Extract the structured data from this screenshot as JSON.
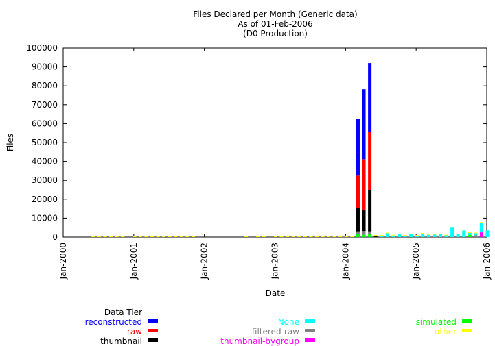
{
  "chart_data": {
    "type": "bar",
    "stacked": true,
    "title": "Files Declared per Month (Generic data)",
    "subtitle_lines": [
      "As of 01-Feb-2006",
      "(D0 Production)"
    ],
    "xlabel": "Date",
    "ylabel": "Files",
    "ylim": [
      0,
      100000
    ],
    "yticks": [
      0,
      10000,
      20000,
      30000,
      40000,
      50000,
      60000,
      70000,
      80000,
      90000,
      100000
    ],
    "xlim": [
      "2000-01",
      "2006-01"
    ],
    "xticks": [
      {
        "date": "2000-01",
        "label": "Jan-2000"
      },
      {
        "date": "2001-01",
        "label": "Jan-2001"
      },
      {
        "date": "2002-01",
        "label": "Jan-2002"
      },
      {
        "date": "2003-01",
        "label": "Jan-2003"
      },
      {
        "date": "2004-01",
        "label": "Jan-2004"
      },
      {
        "date": "2005-01",
        "label": "Jan-2005"
      },
      {
        "date": "2006-01",
        "label": "Jan-2006"
      }
    ],
    "grid": false,
    "legend": {
      "title": "Data Tier",
      "placement": "bottom",
      "entries": [
        {
          "name": "reconstructed",
          "color": "#0000ff"
        },
        {
          "name": "raw",
          "color": "#ff0000"
        },
        {
          "name": "thumbnail",
          "color": "#000000"
        },
        {
          "name": "None",
          "color": "#00ffff"
        },
        {
          "name": "filtered-raw",
          "color": "#808080"
        },
        {
          "name": "thumbnail-bygroup",
          "color": "#ff00ff"
        },
        {
          "name": "simulated",
          "color": "#00ff00"
        },
        {
          "name": "other",
          "color": "#ffff00"
        }
      ]
    },
    "series": [
      {
        "name": "simulated",
        "color": "#00ff00",
        "points": [
          {
            "x": "2004-03",
            "y": 1500
          },
          {
            "x": "2004-04",
            "y": 1200
          },
          {
            "x": "2004-05",
            "y": 1500
          },
          {
            "x": "2005-10",
            "y": 1200
          }
        ]
      },
      {
        "name": "filtered-raw",
        "color": "#808080",
        "points": [
          {
            "x": "2004-03",
            "y": 1500
          },
          {
            "x": "2004-04",
            "y": 2000
          },
          {
            "x": "2004-05",
            "y": 1500
          },
          {
            "x": "2005-11",
            "y": 1000
          }
        ]
      },
      {
        "name": "thumbnail",
        "color": "#000000",
        "points": [
          {
            "x": "2004-03",
            "y": 12500
          },
          {
            "x": "2004-04",
            "y": 11000
          },
          {
            "x": "2004-05",
            "y": 22000
          },
          {
            "x": "2004-06",
            "y": 700
          }
        ]
      },
      {
        "name": "raw",
        "color": "#ff0000",
        "points": [
          {
            "x": "2004-03",
            "y": 17000
          },
          {
            "x": "2004-04",
            "y": 27000
          },
          {
            "x": "2004-05",
            "y": 30500
          }
        ]
      },
      {
        "name": "reconstructed",
        "color": "#0000ff",
        "points": [
          {
            "x": "2004-03",
            "y": 30000
          },
          {
            "x": "2004-04",
            "y": 37000
          },
          {
            "x": "2004-05",
            "y": 36500
          }
        ]
      },
      {
        "name": "thumbnail-bygroup",
        "color": "#ff00ff",
        "points": [
          {
            "x": "2005-12",
            "y": 2500
          }
        ]
      },
      {
        "name": "None",
        "color": "#00ffff",
        "points": [
          {
            "x": "2004-07",
            "y": 700
          },
          {
            "x": "2004-08",
            "y": 2000
          },
          {
            "x": "2004-09",
            "y": 800
          },
          {
            "x": "2004-10",
            "y": 1500
          },
          {
            "x": "2004-11",
            "y": 700
          },
          {
            "x": "2004-12",
            "y": 1500
          },
          {
            "x": "2005-01",
            "y": 700
          },
          {
            "x": "2005-02",
            "y": 1800
          },
          {
            "x": "2005-03",
            "y": 1200
          },
          {
            "x": "2005-04",
            "y": 1300
          },
          {
            "x": "2005-05",
            "y": 1500
          },
          {
            "x": "2005-06",
            "y": 900
          },
          {
            "x": "2005-07",
            "y": 5000
          },
          {
            "x": "2005-08",
            "y": 1500
          },
          {
            "x": "2005-09",
            "y": 3500
          },
          {
            "x": "2005-10",
            "y": 1000
          },
          {
            "x": "2005-11",
            "y": 1000
          },
          {
            "x": "2005-12",
            "y": 5000
          },
          {
            "x": "2006-01",
            "y": 3500
          }
        ]
      },
      {
        "name": "other",
        "color": "#ffff00",
        "points": [
          {
            "x": "2000-06",
            "y": 300
          },
          {
            "x": "2000-07",
            "y": 300
          },
          {
            "x": "2000-08",
            "y": 300
          },
          {
            "x": "2000-09",
            "y": 300
          },
          {
            "x": "2000-10",
            "y": 300
          },
          {
            "x": "2000-11",
            "y": 300
          },
          {
            "x": "2001-01",
            "y": 300
          },
          {
            "x": "2001-02",
            "y": 300
          },
          {
            "x": "2001-03",
            "y": 300
          },
          {
            "x": "2001-04",
            "y": 300
          },
          {
            "x": "2001-05",
            "y": 300
          },
          {
            "x": "2001-06",
            "y": 300
          },
          {
            "x": "2001-07",
            "y": 300
          },
          {
            "x": "2001-08",
            "y": 300
          },
          {
            "x": "2001-09",
            "y": 300
          },
          {
            "x": "2001-10",
            "y": 300
          },
          {
            "x": "2001-11",
            "y": 300
          },
          {
            "x": "2002-08",
            "y": 300
          },
          {
            "x": "2002-10",
            "y": 300
          },
          {
            "x": "2002-11",
            "y": 300
          },
          {
            "x": "2003-01",
            "y": 300
          },
          {
            "x": "2003-02",
            "y": 300
          },
          {
            "x": "2003-03",
            "y": 300
          },
          {
            "x": "2003-04",
            "y": 300
          },
          {
            "x": "2003-05",
            "y": 300
          },
          {
            "x": "2003-06",
            "y": 300
          },
          {
            "x": "2003-07",
            "y": 300
          },
          {
            "x": "2003-08",
            "y": 300
          },
          {
            "x": "2003-09",
            "y": 300
          },
          {
            "x": "2003-10",
            "y": 300
          },
          {
            "x": "2003-11",
            "y": 300
          },
          {
            "x": "2003-12",
            "y": 300
          },
          {
            "x": "2004-01",
            "y": 300
          },
          {
            "x": "2004-02",
            "y": 300
          },
          {
            "x": "2004-06",
            "y": 300
          },
          {
            "x": "2004-07",
            "y": 300
          },
          {
            "x": "2004-08",
            "y": 300
          },
          {
            "x": "2004-09",
            "y": 300
          },
          {
            "x": "2004-10",
            "y": 300
          },
          {
            "x": "2004-11",
            "y": 300
          },
          {
            "x": "2004-12",
            "y": 300
          },
          {
            "x": "2005-01",
            "y": 300
          },
          {
            "x": "2005-02",
            "y": 300
          },
          {
            "x": "2005-03",
            "y": 300
          },
          {
            "x": "2005-04",
            "y": 300
          },
          {
            "x": "2005-05",
            "y": 300
          },
          {
            "x": "2005-06",
            "y": 300
          },
          {
            "x": "2005-07",
            "y": 300
          },
          {
            "x": "2005-08",
            "y": 300
          },
          {
            "x": "2005-09",
            "y": 300
          },
          {
            "x": "2005-10",
            "y": 300
          },
          {
            "x": "2005-11",
            "y": 300
          },
          {
            "x": "2005-12",
            "y": 300
          }
        ]
      }
    ]
  }
}
